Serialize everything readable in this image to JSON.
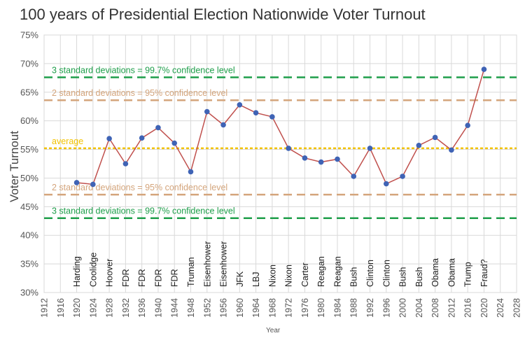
{
  "chart_data": {
    "type": "line",
    "title": "100 years of Presidential Election Nationwide Voter Turnout",
    "xlabel": "Year",
    "ylabel": "Voter Turnout",
    "xlim": [
      1912,
      2028
    ],
    "ylim": [
      30,
      75
    ],
    "grid": true,
    "x_ticks": [
      "1912",
      "1916",
      "1920",
      "1924",
      "1928",
      "1932",
      "1936",
      "1940",
      "1944",
      "1948",
      "1952",
      "1956",
      "1960",
      "1964",
      "1968",
      "1972",
      "1976",
      "1980",
      "1984",
      "1988",
      "1992",
      "1996",
      "2000",
      "2004",
      "2008",
      "2012",
      "2016",
      "2020",
      "2024",
      "2028"
    ],
    "y_ticks": [
      "30%",
      "35%",
      "40%",
      "45%",
      "50%",
      "55%",
      "60%",
      "65%",
      "70%",
      "75%"
    ],
    "series": [
      {
        "color": "#c0504d",
        "marker_color": "#3f63b5",
        "x": [
          1920,
          1924,
          1928,
          1932,
          1936,
          1940,
          1944,
          1948,
          1952,
          1956,
          1960,
          1964,
          1968,
          1972,
          1976,
          1980,
          1984,
          1988,
          1992,
          1996,
          2000,
          2004,
          2008,
          2012,
          2016,
          2020
        ],
        "values": [
          49.2,
          48.9,
          56.9,
          52.5,
          57.0,
          58.8,
          56.1,
          51.1,
          61.6,
          59.3,
          62.8,
          61.4,
          60.7,
          55.2,
          53.5,
          52.8,
          53.3,
          50.3,
          55.2,
          49.0,
          50.3,
          55.7,
          57.1,
          54.9,
          59.2,
          69.0
        ],
        "labels": [
          "Harding",
          "Coolidge",
          "Hoover",
          "FDR",
          "FDR",
          "FDR",
          "FDR",
          "Truman",
          "Eisenhower",
          "Eisenhower",
          "JFK",
          "LBJ",
          "Nixon",
          "Nixon",
          "Carter",
          "Reagan",
          "Reagan",
          "Bush",
          "Clinton",
          "Clinton",
          "Bush",
          "Bush",
          "Obama",
          "Obama",
          "Trump",
          "Fraud?"
        ]
      }
    ],
    "reference_lines": [
      {
        "value": 67.6,
        "label": "3 standard deviations = 99.7% confidence level",
        "color": "#1e9e4a"
      },
      {
        "value": 63.6,
        "label": "2 standard deviations = 95% confidence level",
        "color": "#d4a57c"
      },
      {
        "value": 55.2,
        "label": "average",
        "color": "#f2c200"
      },
      {
        "value": 47.1,
        "label": "2 standard deviations = 95% confidence level",
        "color": "#d4a57c"
      },
      {
        "value": 43.0,
        "label": "3 standard deviations = 99.7% confidence level",
        "color": "#1e9e4a"
      }
    ]
  }
}
